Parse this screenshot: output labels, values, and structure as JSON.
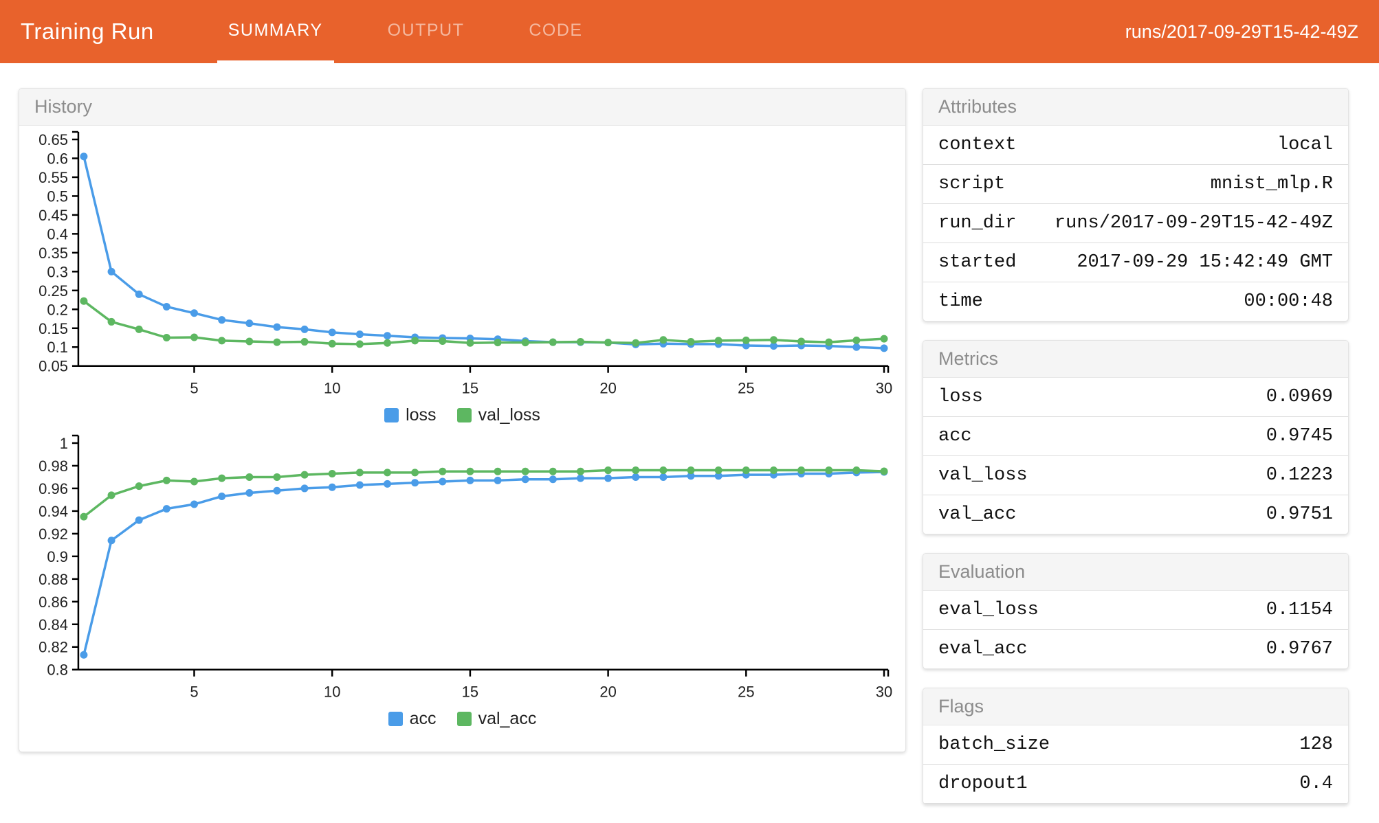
{
  "header": {
    "title": "Training Run",
    "tabs": [
      {
        "label": "SUMMARY",
        "active": true
      },
      {
        "label": "OUTPUT",
        "active": false
      },
      {
        "label": "CODE",
        "active": false
      }
    ],
    "run_label": "runs/2017-09-29T15-42-49Z"
  },
  "history_panel": {
    "title": "History"
  },
  "colors": {
    "accent": "#E8622C",
    "loss_series": "#4A9CE8",
    "val_series": "#5DB761"
  },
  "chart_data": [
    {
      "type": "line",
      "title": "loss history",
      "x": [
        1,
        2,
        3,
        4,
        5,
        6,
        7,
        8,
        9,
        10,
        11,
        12,
        13,
        14,
        15,
        16,
        17,
        18,
        19,
        20,
        21,
        22,
        23,
        24,
        25,
        26,
        27,
        28,
        29,
        30
      ],
      "series": [
        {
          "name": "loss",
          "color": "#4A9CE8",
          "values": [
            0.605,
            0.3,
            0.24,
            0.207,
            0.19,
            0.172,
            0.163,
            0.153,
            0.147,
            0.139,
            0.134,
            0.13,
            0.126,
            0.124,
            0.123,
            0.121,
            0.116,
            0.113,
            0.113,
            0.112,
            0.107,
            0.109,
            0.108,
            0.108,
            0.104,
            0.103,
            0.104,
            0.103,
            0.1,
            0.097
          ]
        },
        {
          "name": "val_loss",
          "color": "#5DB761",
          "values": [
            0.222,
            0.167,
            0.147,
            0.125,
            0.126,
            0.117,
            0.115,
            0.113,
            0.114,
            0.109,
            0.108,
            0.111,
            0.117,
            0.116,
            0.111,
            0.112,
            0.112,
            0.113,
            0.114,
            0.112,
            0.111,
            0.119,
            0.114,
            0.117,
            0.118,
            0.119,
            0.115,
            0.113,
            0.118,
            0.122
          ]
        }
      ],
      "ylim": [
        0.05,
        0.65
      ],
      "yticks": [
        0.65,
        0.6,
        0.55,
        0.5,
        0.45,
        0.4,
        0.35,
        0.3,
        0.25,
        0.2,
        0.15,
        0.1,
        0.05
      ],
      "xticks": [
        5,
        10,
        15,
        20,
        25,
        30
      ],
      "grid": false,
      "legend_position": "bottom",
      "legend": [
        "loss",
        "val_loss"
      ]
    },
    {
      "type": "line",
      "title": "accuracy history",
      "x": [
        1,
        2,
        3,
        4,
        5,
        6,
        7,
        8,
        9,
        10,
        11,
        12,
        13,
        14,
        15,
        16,
        17,
        18,
        19,
        20,
        21,
        22,
        23,
        24,
        25,
        26,
        27,
        28,
        29,
        30
      ],
      "series": [
        {
          "name": "acc",
          "color": "#4A9CE8",
          "values": [
            0.813,
            0.914,
            0.932,
            0.942,
            0.946,
            0.953,
            0.956,
            0.958,
            0.96,
            0.961,
            0.963,
            0.964,
            0.965,
            0.966,
            0.967,
            0.967,
            0.968,
            0.968,
            0.969,
            0.969,
            0.97,
            0.97,
            0.971,
            0.971,
            0.972,
            0.972,
            0.973,
            0.973,
            0.974,
            0.9745
          ]
        },
        {
          "name": "val_acc",
          "color": "#5DB761",
          "values": [
            0.935,
            0.954,
            0.962,
            0.967,
            0.966,
            0.969,
            0.97,
            0.97,
            0.972,
            0.973,
            0.974,
            0.974,
            0.974,
            0.975,
            0.975,
            0.975,
            0.975,
            0.975,
            0.975,
            0.976,
            0.976,
            0.976,
            0.976,
            0.976,
            0.976,
            0.976,
            0.976,
            0.976,
            0.976,
            0.9751
          ]
        }
      ],
      "ylim": [
        0.8,
        1.0
      ],
      "yticks": [
        1,
        0.98,
        0.96,
        0.94,
        0.92,
        0.9,
        0.88,
        0.86,
        0.84,
        0.82,
        0.8
      ],
      "xticks": [
        5,
        10,
        15,
        20,
        25,
        30
      ],
      "grid": false,
      "legend_position": "bottom",
      "legend": [
        "acc",
        "val_acc"
      ]
    }
  ],
  "panels": [
    {
      "title": "Attributes",
      "rows": [
        [
          "context",
          "local"
        ],
        [
          "script",
          "mnist_mlp.R"
        ],
        [
          "run_dir",
          "runs/2017-09-29T15-42-49Z"
        ],
        [
          "started",
          "2017-09-29 15:42:49 GMT"
        ],
        [
          "time",
          "00:00:48"
        ]
      ]
    },
    {
      "title": "Metrics",
      "rows": [
        [
          "loss",
          "0.0969"
        ],
        [
          "acc",
          "0.9745"
        ],
        [
          "val_loss",
          "0.1223"
        ],
        [
          "val_acc",
          "0.9751"
        ]
      ]
    },
    {
      "title": "Evaluation",
      "rows": [
        [
          "eval_loss",
          "0.1154"
        ],
        [
          "eval_acc",
          "0.9767"
        ]
      ]
    },
    {
      "title": "Flags",
      "rows": [
        [
          "batch_size",
          "128"
        ],
        [
          "dropout1",
          "0.4"
        ]
      ]
    }
  ]
}
